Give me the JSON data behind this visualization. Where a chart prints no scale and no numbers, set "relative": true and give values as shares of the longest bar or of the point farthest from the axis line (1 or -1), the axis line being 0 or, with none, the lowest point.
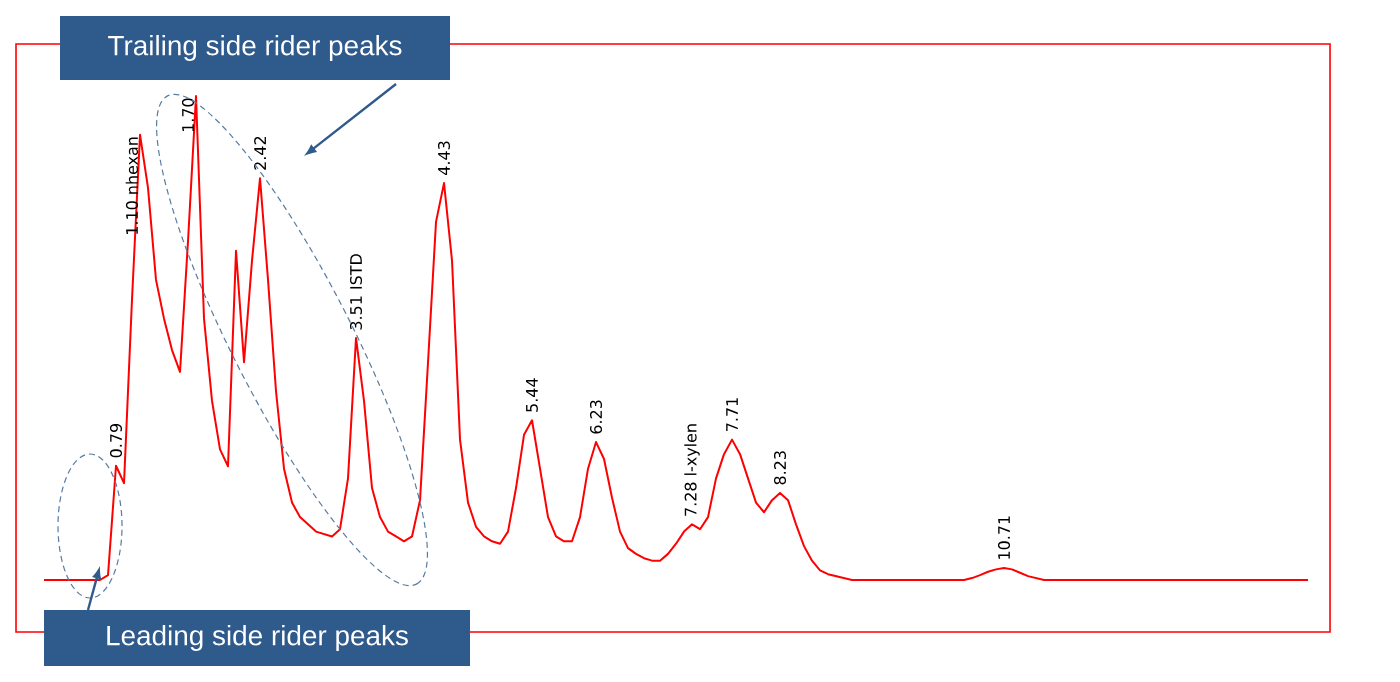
{
  "chart_data": {
    "type": "line",
    "relative": true,
    "color": "#ff0000",
    "categories": [
      null,
      null,
      null,
      null,
      null,
      null,
      null,
      null,
      null,
      null,
      null,
      null,
      null,
      null,
      null,
      null,
      null,
      null,
      null,
      null,
      null,
      null,
      null,
      null,
      null,
      null,
      null,
      null,
      null,
      null,
      null,
      null,
      null,
      null,
      null,
      null,
      null,
      null,
      null,
      null,
      null,
      null,
      null,
      null,
      null,
      null,
      null,
      null,
      null,
      null,
      null,
      null,
      null,
      null,
      null,
      null,
      null,
      null,
      null,
      null,
      null,
      null,
      null,
      null,
      null,
      null,
      null,
      null,
      null,
      null,
      null,
      null,
      null,
      null,
      null,
      null,
      null,
      null,
      null,
      null,
      null,
      null,
      null,
      null,
      null,
      null,
      null,
      null,
      null,
      null,
      null,
      null,
      null,
      null,
      null,
      null,
      null,
      null,
      null,
      null,
      null,
      null,
      null,
      null,
      null,
      null,
      null,
      null,
      null,
      null,
      null,
      null,
      null,
      null,
      null,
      null,
      null,
      null,
      null,
      null,
      null,
      null,
      null,
      null,
      null,
      null,
      null,
      null,
      null,
      null,
      null,
      null,
      null,
      null,
      null,
      null,
      null,
      null,
      null,
      null,
      null,
      null,
      null,
      null,
      null,
      null,
      null,
      null,
      null,
      null,
      null,
      null,
      null,
      null,
      null,
      null,
      null,
      null,
      null
    ],
    "values": [
      0,
      0,
      0,
      0,
      0,
      0,
      0,
      0,
      0.01,
      0.236,
      0.2,
      0.58,
      0.92,
      0.81,
      0.62,
      0.54,
      0.475,
      0.43,
      0.7,
      1,
      0.54,
      0.37,
      0.27,
      0.235,
      0.68,
      0.45,
      0.66,
      0.83,
      0.62,
      0.39,
      0.23,
      0.16,
      0.13,
      0.115,
      0.1,
      0.095,
      0.09,
      0.105,
      0.21,
      0.5,
      0.37,
      0.19,
      0.13,
      0.1,
      0.09,
      0.08,
      0.09,
      0.165,
      0.45,
      0.74,
      0.82,
      0.66,
      0.29,
      0.16,
      0.11,
      0.09,
      0.08,
      0.075,
      0.1,
      0.19,
      0.3,
      0.33,
      0.23,
      0.13,
      0.09,
      0.08,
      0.08,
      0.13,
      0.23,
      0.285,
      0.25,
      0.17,
      0.1,
      0.066,
      0.054,
      0.045,
      0.04,
      0.04,
      0.054,
      0.075,
      0.1,
      0.115,
      0.105,
      0.13,
      0.21,
      0.26,
      0.29,
      0.26,
      0.21,
      0.16,
      0.14,
      0.165,
      0.18,
      0.165,
      0.115,
      0.07,
      0.04,
      0.02,
      0.012,
      0.008,
      0.004,
      0,
      0,
      0,
      0,
      0,
      0,
      0,
      0,
      0,
      0,
      0,
      0,
      0,
      0,
      0,
      0.004,
      0.01,
      0.017,
      0.022,
      0.025,
      0.022,
      0.015,
      0.008,
      0.004,
      0,
      0,
      0,
      0,
      0,
      0,
      0,
      0,
      0,
      0,
      0,
      0,
      0,
      0,
      0,
      0,
      0,
      0,
      0,
      0,
      0,
      0,
      0,
      0,
      0,
      0,
      0,
      0,
      0,
      0,
      0,
      0,
      0,
      0
    ],
    "annotations": [
      "Trailing side rider peaks",
      "Leading side rider peaks",
      {
        "text": "0.79",
        "y": 0.236
      },
      {
        "text": "1.10 nhexan",
        "y": 0.92
      },
      {
        "text": "1.70",
        "y": 1
      },
      {
        "text": "2.42",
        "y": 0.83
      },
      {
        "text": "3.51 ISTD",
        "y": 0.5
      },
      {
        "text": "4.43",
        "y": 0.82
      },
      {
        "text": "5.44",
        "y": 0.33
      },
      {
        "text": "6.23",
        "y": 0.285
      },
      {
        "text": "7.28 l-xylen",
        "y": 0.115
      },
      {
        "text": "7.71",
        "y": 0.29
      },
      {
        "text": "8.23",
        "y": 0.18
      },
      {
        "text": "10.71",
        "y": 0.025
      }
    ]
  }
}
